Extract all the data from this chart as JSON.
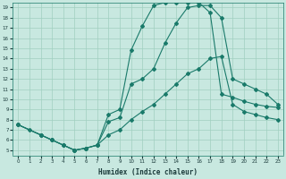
{
  "xlabel": "Humidex (Indice chaleur)",
  "ylabel": "",
  "bg_color": "#c8e8e0",
  "grid_color": "#a0cfc0",
  "line_color": "#1a7a6a",
  "xlim": [
    -0.5,
    23.5
  ],
  "ylim": [
    4.5,
    19.5
  ],
  "xticks": [
    0,
    1,
    2,
    3,
    4,
    5,
    6,
    7,
    8,
    9,
    10,
    11,
    12,
    13,
    14,
    15,
    16,
    17,
    18,
    19,
    20,
    21,
    22,
    23
  ],
  "yticks": [
    5,
    6,
    7,
    8,
    9,
    10,
    11,
    12,
    13,
    14,
    15,
    16,
    17,
    18,
    19
  ],
  "line1_x": [
    0,
    1,
    2,
    3,
    4,
    5,
    6,
    7,
    8,
    9,
    10,
    11,
    12,
    13,
    14,
    15,
    16,
    17,
    18,
    19,
    20,
    21,
    22,
    23
  ],
  "line1_y": [
    7.5,
    7.0,
    6.5,
    6.0,
    5.5,
    5.0,
    5.2,
    5.5,
    8.5,
    9.0,
    14.8,
    17.2,
    19.2,
    19.5,
    19.5,
    19.5,
    19.5,
    18.5,
    10.5,
    10.2,
    9.8,
    9.5,
    9.3,
    9.2
  ],
  "line2_x": [
    0,
    2,
    3,
    4,
    5,
    6,
    7,
    8,
    9,
    10,
    11,
    12,
    13,
    14,
    15,
    16,
    17,
    18,
    19,
    20,
    21,
    22,
    23
  ],
  "line2_y": [
    7.5,
    6.5,
    6.0,
    5.5,
    5.0,
    5.2,
    5.5,
    7.8,
    8.2,
    11.5,
    12.0,
    13.0,
    15.5,
    17.5,
    19.0,
    19.2,
    19.2,
    18.0,
    12.0,
    11.5,
    11.0,
    10.5,
    9.5
  ],
  "line3_x": [
    0,
    2,
    3,
    4,
    5,
    6,
    7,
    8,
    9,
    10,
    11,
    12,
    13,
    14,
    15,
    16,
    17,
    18,
    19,
    20,
    21,
    22,
    23
  ],
  "line3_y": [
    7.5,
    6.5,
    6.0,
    5.5,
    5.0,
    5.2,
    5.5,
    6.5,
    7.0,
    8.0,
    8.8,
    9.5,
    10.5,
    11.5,
    12.5,
    13.0,
    14.0,
    14.2,
    9.5,
    8.8,
    8.5,
    8.2,
    8.0
  ]
}
